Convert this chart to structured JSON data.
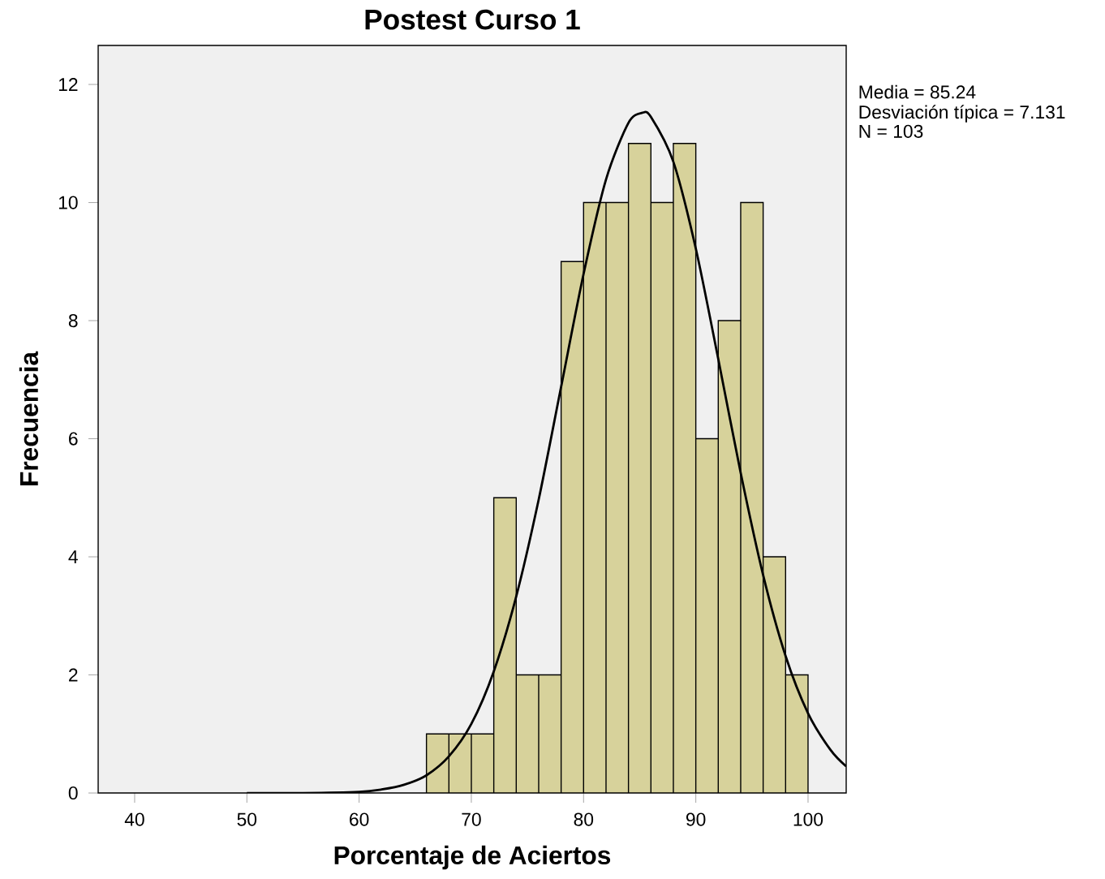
{
  "chart_data": {
    "type": "histogram",
    "title": "Postest Curso 1",
    "xlabel": "Porcentaje de Aciertos",
    "ylabel": "Frecuencia",
    "bins": [
      66,
      68,
      70,
      72,
      74,
      76,
      78,
      80,
      82,
      84,
      86,
      88,
      90,
      92,
      94,
      96,
      98,
      100
    ],
    "values": [
      1,
      1,
      1,
      5,
      2,
      2,
      9,
      10,
      10,
      11,
      10,
      11,
      6,
      8,
      10,
      4,
      2
    ],
    "color": "#d7d29b",
    "series": [
      {
        "type": "line",
        "color": "#000000",
        "x": [
          50,
          55,
          60,
          62,
          64,
          66,
          68,
          70,
          72,
          74,
          76,
          78,
          80,
          82,
          84,
          85.24,
          86,
          88,
          90,
          92,
          94,
          96,
          98,
          100,
          102,
          103.4
        ],
        "values": [
          0,
          0,
          0.02,
          0.06,
          0.14,
          0.3,
          0.62,
          1.17,
          2.06,
          3.33,
          4.97,
          6.88,
          8.79,
          10.39,
          11.35,
          11.52,
          11.45,
          10.69,
          9.22,
          7.35,
          5.42,
          3.69,
          2.32,
          1.35,
          0.73,
          0.45
        ]
      }
    ],
    "xlim": [
      36.75,
      103.4
    ],
    "ylim": [
      0,
      12.66
    ],
    "xticks": [
      40,
      50,
      60,
      70,
      80,
      90,
      100
    ],
    "yticks": [
      0,
      2,
      4,
      6,
      8,
      10,
      12
    ],
    "annotations": [
      "Media = 85.24",
      "Desviación típica = 7.131",
      "N = 103"
    ]
  }
}
